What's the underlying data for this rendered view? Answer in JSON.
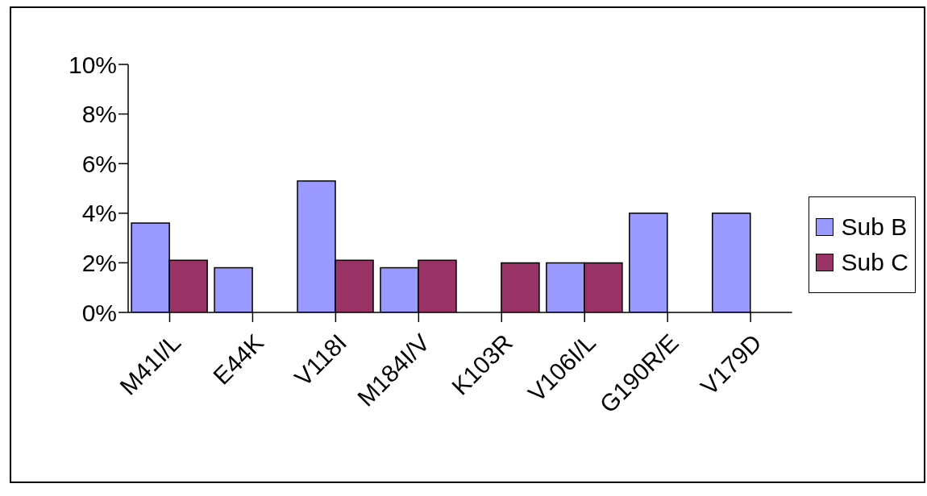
{
  "chart_data": {
    "type": "bar",
    "categories": [
      "M41I/L",
      "E44K",
      "V118I",
      "M184I/V",
      "K103R",
      "V106I/L",
      "G190R/E",
      "V179D"
    ],
    "series": [
      {
        "name": "Sub B",
        "color": "#9999ff",
        "values": [
          3.6,
          1.8,
          5.3,
          1.8,
          null,
          2.0,
          4.0,
          4.0
        ]
      },
      {
        "name": "Sub C",
        "color": "#993366",
        "values": [
          2.1,
          null,
          2.1,
          2.1,
          2.0,
          2.0,
          null,
          null
        ]
      }
    ],
    "ylim": [
      0,
      10
    ],
    "yticks": [
      {
        "value": 0,
        "label": "0%"
      },
      {
        "value": 2,
        "label": "2%"
      },
      {
        "value": 4,
        "label": "4%"
      },
      {
        "value": 6,
        "label": "6%"
      },
      {
        "value": 8,
        "label": "8%"
      },
      {
        "value": 10,
        "label": "10%"
      }
    ],
    "grid": false,
    "legend": "right"
  }
}
